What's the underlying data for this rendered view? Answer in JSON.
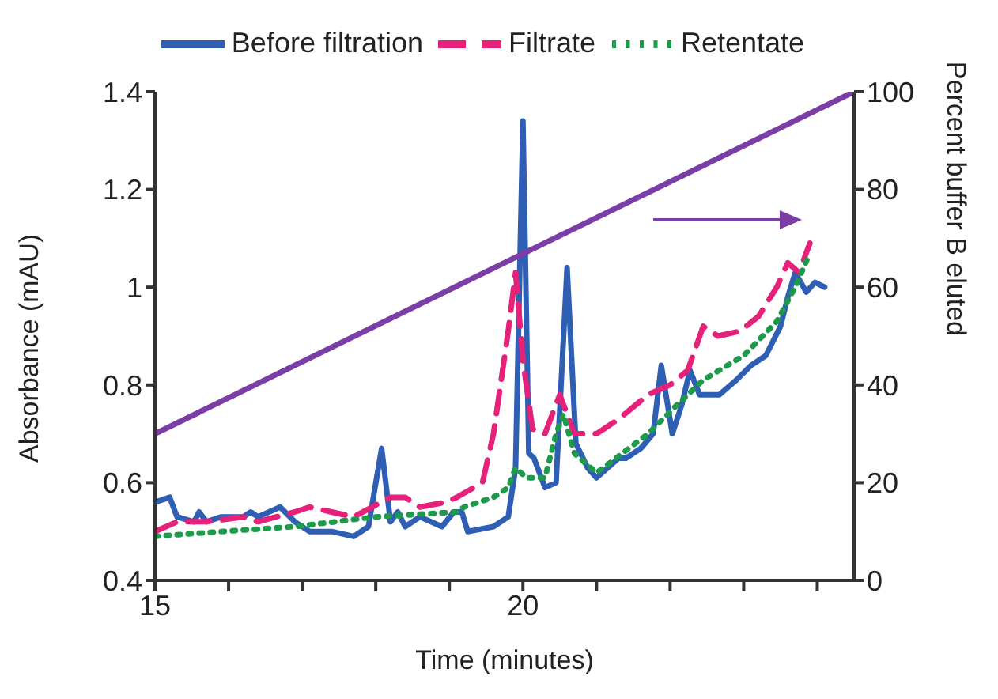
{
  "chart_data": {
    "type": "line",
    "xlabel": "Time (minutes)",
    "ylabel": "Absorbance (mAU)",
    "y2label": "Percent buffer B eluted",
    "xlim": [
      15,
      24.5
    ],
    "xticks": [
      15,
      {
        "value": 16,
        "label": null
      },
      {
        "value": 17,
        "label": null
      },
      {
        "value": 18,
        "label": null
      },
      {
        "value": 19,
        "label": null
      },
      20,
      {
        "value": 21,
        "label": null
      },
      {
        "value": 22,
        "label": null
      },
      {
        "value": 23,
        "label": null
      },
      {
        "value": 24,
        "label": null
      }
    ],
    "ylim": [
      0.4,
      1.4
    ],
    "yticks": [
      0.4,
      0.6,
      0.8,
      1,
      1.2,
      1.4
    ],
    "y2lim": [
      0,
      100
    ],
    "y2ticks": [
      0,
      20,
      40,
      60,
      80,
      100
    ],
    "grid": false,
    "legend": "top",
    "marker": "none",
    "series": [
      {
        "name": "Before filtration",
        "color": "#2f5fb5",
        "line_style": "solid",
        "x": [
          15,
          15.2,
          15.3,
          15.53,
          15.6,
          15.7,
          15.9,
          16.2,
          16.3,
          16.4,
          16.7,
          16.9,
          17.1,
          17.4,
          17.7,
          17.9,
          18.08,
          18.2,
          18.3,
          18.4,
          18.6,
          18.9,
          19.06,
          19.17,
          19.25,
          19.6,
          19.8,
          19.9,
          20,
          20.08,
          20.15,
          20.3,
          20.45,
          20.6,
          20.72,
          20.88,
          21,
          21.3,
          21.4,
          21.6,
          21.77,
          21.88,
          22.03,
          22.16,
          22.27,
          22.4,
          22.67,
          22.9,
          23.1,
          23.3,
          23.5,
          23.6,
          23.7,
          23.85,
          23.97,
          24.1
        ],
        "values": [
          0.56,
          0.57,
          0.53,
          0.52,
          0.54,
          0.52,
          0.53,
          0.53,
          0.54,
          0.53,
          0.55,
          0.52,
          0.5,
          0.5,
          0.49,
          0.51,
          0.67,
          0.52,
          0.54,
          0.51,
          0.53,
          0.51,
          0.54,
          0.54,
          0.5,
          0.51,
          0.53,
          0.63,
          1.34,
          0.66,
          0.65,
          0.59,
          0.6,
          1.04,
          0.68,
          0.63,
          0.61,
          0.65,
          0.65,
          0.67,
          0.7,
          0.84,
          0.7,
          0.76,
          0.83,
          0.78,
          0.78,
          0.81,
          0.84,
          0.86,
          0.92,
          0.98,
          1.03,
          0.99,
          1.01,
          1
        ]
      },
      {
        "name": "Filtrate",
        "color": "#e6217a",
        "line_style": "dashed",
        "x": [
          15,
          15.3,
          15.7,
          16.2,
          16.4,
          16.9,
          17.1,
          17.4,
          17.7,
          17.95,
          18.2,
          18.4,
          18.6,
          18.95,
          19.1,
          19.45,
          19.6,
          19.8,
          19.9,
          20,
          20.13,
          20.3,
          20.5,
          20.7,
          21,
          21.3,
          21.7,
          22,
          22.24,
          22.45,
          22.65,
          22.95,
          23.2,
          23.45,
          23.6,
          23.75,
          23.9
        ],
        "values": [
          0.5,
          0.52,
          0.52,
          0.53,
          0.52,
          0.54,
          0.55,
          0.54,
          0.53,
          0.55,
          0.57,
          0.57,
          0.55,
          0.56,
          0.57,
          0.6,
          0.7,
          0.91,
          1.03,
          0.85,
          0.71,
          0.7,
          0.78,
          0.7,
          0.7,
          0.73,
          0.78,
          0.8,
          0.83,
          0.92,
          0.9,
          0.91,
          0.94,
          1,
          1.05,
          1.03,
          1.09
        ]
      },
      {
        "name": "Retentate",
        "color": "#1e9a4b",
        "line_style": "dotted",
        "x": [
          15,
          15.9,
          16.9,
          18,
          19.1,
          19.2,
          19.6,
          19.8,
          19.9,
          20.05,
          20.3,
          20.45,
          20.55,
          20.7,
          21,
          21.7,
          22.1,
          22.45,
          23,
          23.45,
          23.7,
          23.9
        ],
        "values": [
          0.49,
          0.5,
          0.51,
          0.53,
          0.54,
          0.55,
          0.57,
          0.59,
          0.63,
          0.61,
          0.61,
          0.7,
          0.74,
          0.66,
          0.62,
          0.7,
          0.76,
          0.81,
          0.86,
          0.93,
          1,
          1.07
        ]
      },
      {
        "color": "#7a3ea6",
        "line_style": "solid",
        "axis": "y2",
        "x": [
          15,
          24.5
        ],
        "values": [
          30,
          100
        ]
      }
    ]
  }
}
